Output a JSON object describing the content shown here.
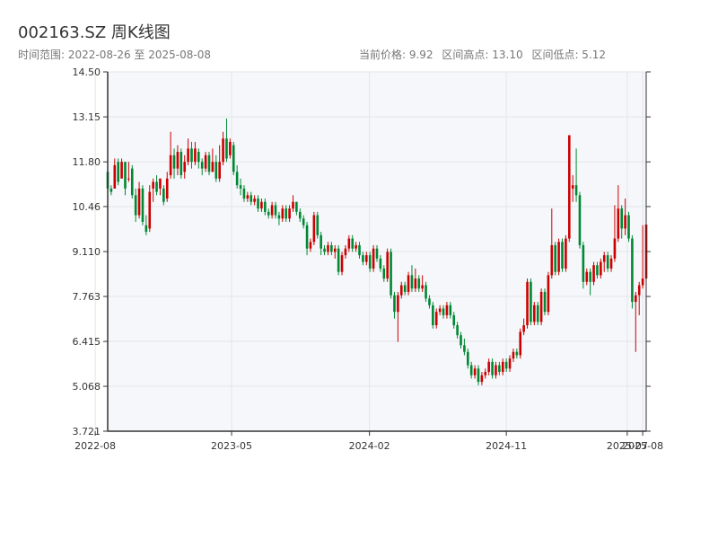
{
  "header": {
    "title": "002163.SZ 周K线图",
    "date_range": "时间范围: 2022-08-26 至 2025-08-08",
    "current_price": "当前价格: 9.92",
    "range_high": "区间高点: 13.10",
    "range_low": "区间低点: 5.12"
  },
  "colors": {
    "up": "#cc0000",
    "down": "#008833",
    "plot_bg": "#f5f7fa",
    "grid": "#e3e6ea",
    "axis": "#333333"
  },
  "chart_data": {
    "type": "candlestick",
    "title": "002163.SZ 周K线图",
    "ylim": [
      3.721,
      14.5
    ],
    "y_ticks": [
      "3.721",
      "5.068",
      "6.415",
      "7.763",
      "9.110",
      "10.46",
      "11.80",
      "13.15",
      "14.50"
    ],
    "y_tick_values": [
      3.721,
      5.068,
      6.415,
      7.763,
      9.11,
      10.46,
      11.8,
      13.15,
      14.5
    ],
    "x_ticks": [
      "2022-08",
      "2023-05",
      "2024-02",
      "2024-11",
      "2025-07",
      "2025-08"
    ],
    "x_tick_dates": [
      "2022-08-01",
      "2023-05-01",
      "2024-02-01",
      "2024-11-01",
      "2025-07-01",
      "2025-08-01"
    ],
    "x_start": "2022-08-26",
    "x_end": "2025-08-08",
    "grid": true,
    "legend": "none",
    "candles": [
      [
        "2022-08-26",
        11.5,
        11.0,
        11.7,
        10.9
      ],
      [
        "2022-09-02",
        11.0,
        10.9,
        11.1,
        10.8
      ],
      [
        "2022-09-09",
        11.0,
        11.7,
        11.9,
        11.0
      ],
      [
        "2022-09-16",
        11.8,
        11.2,
        11.9,
        11.1
      ],
      [
        "2022-09-23",
        11.3,
        11.8,
        11.9,
        11.3
      ],
      [
        "2022-09-30",
        11.8,
        11.0,
        11.8,
        10.8
      ],
      [
        "2022-10-07",
        11.3,
        11.3,
        11.8,
        11.2
      ],
      [
        "2022-10-14",
        11.6,
        10.8,
        11.7,
        10.7
      ],
      [
        "2022-10-21",
        10.8,
        10.2,
        11.0,
        10.0
      ],
      [
        "2022-10-28",
        10.2,
        11.0,
        11.2,
        10.1
      ],
      [
        "2022-11-04",
        11.0,
        10.0,
        11.1,
        9.9
      ],
      [
        "2022-11-11",
        9.9,
        9.7,
        10.2,
        9.6
      ],
      [
        "2022-11-18",
        9.8,
        10.9,
        11.1,
        9.7
      ],
      [
        "2022-11-25",
        11.0,
        11.2,
        11.3,
        10.6
      ],
      [
        "2022-12-02",
        11.2,
        10.9,
        11.4,
        10.8
      ],
      [
        "2022-12-09",
        11.0,
        11.3,
        11.3,
        10.8
      ],
      [
        "2022-12-16",
        11.0,
        10.6,
        11.1,
        10.5
      ],
      [
        "2022-12-23",
        10.7,
        11.3,
        11.5,
        10.6
      ],
      [
        "2022-12-30",
        11.4,
        12.0,
        12.7,
        11.3
      ],
      [
        "2023-01-06",
        12.0,
        11.6,
        12.2,
        11.3
      ],
      [
        "2023-01-13",
        11.6,
        12.1,
        12.3,
        11.4
      ],
      [
        "2023-01-20",
        12.1,
        11.4,
        12.2,
        11.3
      ],
      [
        "2023-01-27",
        11.5,
        11.8,
        12.0,
        11.3
      ],
      [
        "2023-02-03",
        11.8,
        12.2,
        12.5,
        11.7
      ],
      [
        "2023-02-10",
        12.2,
        11.8,
        12.4,
        11.6
      ],
      [
        "2023-02-17",
        11.8,
        12.2,
        12.4,
        11.7
      ],
      [
        "2023-02-24",
        12.1,
        11.8,
        12.2,
        11.6
      ],
      [
        "2023-03-03",
        11.8,
        11.6,
        11.9,
        11.4
      ],
      [
        "2023-03-10",
        11.6,
        12.0,
        12.1,
        11.5
      ],
      [
        "2023-03-17",
        12.0,
        11.5,
        12.1,
        11.4
      ],
      [
        "2023-03-24",
        11.5,
        11.8,
        12.2,
        11.5
      ],
      [
        "2023-03-31",
        11.8,
        11.3,
        12.0,
        11.2
      ],
      [
        "2023-04-07",
        11.3,
        11.8,
        12.3,
        11.2
      ],
      [
        "2023-04-14",
        11.8,
        12.5,
        12.7,
        11.7
      ],
      [
        "2023-04-21",
        12.5,
        11.9,
        13.1,
        11.8
      ],
      [
        "2023-04-28",
        12.0,
        12.4,
        12.5,
        11.9
      ],
      [
        "2023-05-05",
        12.3,
        11.5,
        12.4,
        11.4
      ],
      [
        "2023-05-12",
        11.5,
        11.1,
        11.7,
        11.0
      ],
      [
        "2023-05-19",
        11.1,
        11.0,
        11.3,
        10.8
      ],
      [
        "2023-05-26",
        11.0,
        10.7,
        11.1,
        10.6
      ],
      [
        "2023-06-02",
        10.7,
        10.8,
        10.9,
        10.6
      ],
      [
        "2023-06-09",
        10.8,
        10.6,
        10.9,
        10.5
      ],
      [
        "2023-06-16",
        10.6,
        10.7,
        10.8,
        10.5
      ],
      [
        "2023-06-23",
        10.7,
        10.4,
        10.8,
        10.3
      ],
      [
        "2023-06-30",
        10.4,
        10.6,
        10.7,
        10.3
      ],
      [
        "2023-07-07",
        10.6,
        10.3,
        10.7,
        10.2
      ],
      [
        "2023-07-14",
        10.3,
        10.2,
        10.4,
        10.1
      ],
      [
        "2023-07-21",
        10.2,
        10.5,
        10.6,
        10.1
      ],
      [
        "2023-07-28",
        10.5,
        10.2,
        10.6,
        10.1
      ],
      [
        "2023-08-04",
        10.2,
        10.1,
        10.3,
        9.9
      ],
      [
        "2023-08-11",
        10.1,
        10.4,
        10.5,
        10.0
      ],
      [
        "2023-08-18",
        10.4,
        10.1,
        10.5,
        10.0
      ],
      [
        "2023-08-25",
        10.1,
        10.4,
        10.5,
        10.0
      ],
      [
        "2023-09-01",
        10.4,
        10.6,
        10.8,
        10.3
      ],
      [
        "2023-09-08",
        10.6,
        10.3,
        10.6,
        10.2
      ],
      [
        "2023-09-15",
        10.3,
        10.1,
        10.4,
        10.0
      ],
      [
        "2023-09-22",
        10.1,
        9.9,
        10.2,
        9.8
      ],
      [
        "2023-09-29",
        9.9,
        9.2,
        10.0,
        9.0
      ],
      [
        "2023-10-06",
        9.2,
        9.4,
        9.5,
        9.1
      ],
      [
        "2023-10-13",
        9.4,
        10.2,
        10.3,
        9.3
      ],
      [
        "2023-10-20",
        10.2,
        9.6,
        10.3,
        9.5
      ],
      [
        "2023-10-27",
        9.6,
        9.2,
        9.7,
        9.0
      ],
      [
        "2023-11-03",
        9.2,
        9.1,
        9.3,
        9.0
      ],
      [
        "2023-11-10",
        9.1,
        9.3,
        9.4,
        9.0
      ],
      [
        "2023-11-17",
        9.3,
        9.1,
        9.4,
        9.0
      ],
      [
        "2023-11-24",
        9.1,
        9.2,
        9.3,
        8.9
      ],
      [
        "2023-12-01",
        9.2,
        8.5,
        9.3,
        8.4
      ],
      [
        "2023-12-08",
        8.5,
        9.0,
        9.1,
        8.4
      ],
      [
        "2023-12-15",
        9.0,
        9.2,
        9.3,
        8.9
      ],
      [
        "2023-12-22",
        9.2,
        9.5,
        9.6,
        9.1
      ],
      [
        "2023-12-29",
        9.5,
        9.2,
        9.6,
        9.1
      ],
      [
        "2024-01-05",
        9.2,
        9.3,
        9.4,
        9.1
      ],
      [
        "2024-01-12",
        9.3,
        9.0,
        9.4,
        8.9
      ],
      [
        "2024-01-19",
        9.0,
        8.8,
        9.1,
        8.7
      ],
      [
        "2024-01-26",
        8.8,
        9.0,
        9.1,
        8.7
      ],
      [
        "2024-02-02",
        9.0,
        8.6,
        9.1,
        8.5
      ],
      [
        "2024-02-09",
        8.6,
        9.2,
        9.3,
        8.5
      ],
      [
        "2024-02-16",
        9.2,
        8.9,
        9.3,
        8.8
      ],
      [
        "2024-02-23",
        8.9,
        8.6,
        9.0,
        8.5
      ],
      [
        "2024-03-01",
        8.6,
        8.3,
        8.7,
        8.2
      ],
      [
        "2024-03-08",
        8.3,
        9.1,
        9.2,
        8.2
      ],
      [
        "2024-03-15",
        9.1,
        7.8,
        9.2,
        7.7
      ],
      [
        "2024-03-22",
        7.8,
        7.3,
        7.9,
        7.1
      ],
      [
        "2024-03-29",
        7.3,
        7.8,
        7.9,
        6.4
      ],
      [
        "2024-04-05",
        7.8,
        8.1,
        8.2,
        7.7
      ],
      [
        "2024-04-12",
        8.1,
        7.9,
        8.2,
        7.8
      ],
      [
        "2024-04-19",
        7.9,
        8.4,
        8.5,
        7.8
      ],
      [
        "2024-04-26",
        8.4,
        8.0,
        8.7,
        7.9
      ],
      [
        "2024-05-03",
        8.0,
        8.3,
        8.6,
        7.9
      ],
      [
        "2024-05-10",
        8.3,
        8.0,
        8.4,
        7.9
      ],
      [
        "2024-05-17",
        8.0,
        8.1,
        8.4,
        7.9
      ],
      [
        "2024-05-24",
        8.1,
        7.7,
        8.2,
        7.6
      ],
      [
        "2024-05-31",
        7.7,
        7.5,
        7.8,
        7.4
      ],
      [
        "2024-06-07",
        7.5,
        6.9,
        7.6,
        6.8
      ],
      [
        "2024-06-14",
        6.9,
        7.3,
        7.4,
        6.8
      ],
      [
        "2024-06-21",
        7.3,
        7.4,
        7.5,
        7.2
      ],
      [
        "2024-06-28",
        7.4,
        7.2,
        7.5,
        7.1
      ],
      [
        "2024-07-05",
        7.2,
        7.5,
        7.6,
        7.1
      ],
      [
        "2024-07-12",
        7.5,
        7.2,
        7.6,
        7.1
      ],
      [
        "2024-07-19",
        7.2,
        6.9,
        7.3,
        6.8
      ],
      [
        "2024-07-26",
        6.9,
        6.6,
        7.0,
        6.5
      ],
      [
        "2024-08-02",
        6.6,
        6.3,
        6.7,
        6.2
      ],
      [
        "2024-08-09",
        6.3,
        6.1,
        6.5,
        6.0
      ],
      [
        "2024-08-16",
        6.1,
        5.7,
        6.2,
        5.6
      ],
      [
        "2024-08-23",
        5.7,
        5.4,
        5.8,
        5.3
      ],
      [
        "2024-08-30",
        5.4,
        5.6,
        5.7,
        5.3
      ],
      [
        "2024-09-06",
        5.6,
        5.2,
        5.7,
        5.1
      ],
      [
        "2024-09-13",
        5.2,
        5.4,
        5.5,
        5.1
      ],
      [
        "2024-09-20",
        5.4,
        5.5,
        5.6,
        5.3
      ],
      [
        "2024-09-27",
        5.5,
        5.8,
        5.9,
        5.4
      ],
      [
        "2024-10-04",
        5.8,
        5.4,
        5.9,
        5.3
      ],
      [
        "2024-10-11",
        5.4,
        5.7,
        5.8,
        5.3
      ],
      [
        "2024-10-18",
        5.7,
        5.5,
        5.8,
        5.4
      ],
      [
        "2024-10-25",
        5.5,
        5.8,
        5.9,
        5.4
      ],
      [
        "2024-11-01",
        5.8,
        5.6,
        5.9,
        5.5
      ],
      [
        "2024-11-08",
        5.6,
        5.9,
        6.0,
        5.5
      ],
      [
        "2024-11-15",
        5.9,
        6.1,
        6.2,
        5.8
      ],
      [
        "2024-11-22",
        6.1,
        6.0,
        6.2,
        5.9
      ],
      [
        "2024-11-29",
        6.0,
        6.7,
        6.8,
        5.9
      ],
      [
        "2024-12-06",
        6.7,
        6.9,
        7.1,
        6.6
      ],
      [
        "2024-12-13",
        6.9,
        8.2,
        8.3,
        6.8
      ],
      [
        "2024-12-20",
        8.2,
        7.0,
        8.3,
        6.9
      ],
      [
        "2024-12-27",
        7.0,
        7.5,
        7.6,
        6.9
      ],
      [
        "2025-01-03",
        7.5,
        7.0,
        7.6,
        6.9
      ],
      [
        "2025-01-10",
        7.0,
        7.9,
        8.0,
        6.9
      ],
      [
        "2025-01-17",
        7.9,
        7.3,
        8.0,
        7.2
      ],
      [
        "2025-01-24",
        7.3,
        8.4,
        8.5,
        7.2
      ],
      [
        "2025-01-31",
        8.4,
        9.3,
        10.4,
        8.3
      ],
      [
        "2025-02-07",
        9.3,
        8.5,
        9.4,
        8.4
      ],
      [
        "2025-02-14",
        8.5,
        9.4,
        9.5,
        8.4
      ],
      [
        "2025-02-21",
        9.4,
        8.6,
        9.5,
        8.5
      ],
      [
        "2025-02-28",
        8.6,
        9.5,
        9.6,
        8.5
      ],
      [
        "2025-03-07",
        9.5,
        12.6,
        12.6,
        9.4
      ],
      [
        "2025-03-14",
        11.0,
        11.1,
        11.4,
        10.6
      ],
      [
        "2025-03-21",
        11.1,
        10.8,
        12.2,
        10.6
      ],
      [
        "2025-03-28",
        10.8,
        9.3,
        10.9,
        9.2
      ],
      [
        "2025-04-04",
        9.3,
        8.2,
        9.4,
        8.0
      ],
      [
        "2025-04-11",
        8.2,
        8.5,
        8.6,
        8.1
      ],
      [
        "2025-04-18",
        8.5,
        8.2,
        8.6,
        7.8
      ],
      [
        "2025-04-25",
        8.2,
        8.7,
        8.8,
        8.1
      ],
      [
        "2025-05-02",
        8.7,
        8.4,
        8.8,
        8.3
      ],
      [
        "2025-05-09",
        8.4,
        8.8,
        8.9,
        8.3
      ],
      [
        "2025-05-16",
        8.8,
        9.0,
        9.1,
        8.5
      ],
      [
        "2025-05-23",
        9.0,
        8.6,
        9.1,
        8.5
      ],
      [
        "2025-05-30",
        8.6,
        8.9,
        9.0,
        8.5
      ],
      [
        "2025-06-06",
        8.9,
        9.5,
        10.5,
        8.8
      ],
      [
        "2025-06-13",
        9.5,
        10.4,
        11.1,
        9.4
      ],
      [
        "2025-06-20",
        10.4,
        9.8,
        10.5,
        9.5
      ],
      [
        "2025-06-27",
        9.8,
        10.2,
        10.7,
        9.6
      ],
      [
        "2025-07-04",
        10.2,
        9.5,
        10.3,
        9.4
      ],
      [
        "2025-07-11",
        9.5,
        7.6,
        9.6,
        7.4
      ],
      [
        "2025-07-18",
        7.6,
        7.8,
        7.9,
        6.1
      ],
      [
        "2025-07-25",
        7.8,
        8.1,
        8.2,
        7.2
      ],
      [
        "2025-08-01",
        8.1,
        8.3,
        9.9,
        8.0
      ],
      [
        "2025-08-08",
        8.3,
        9.92,
        10.1,
        8.2
      ]
    ]
  }
}
